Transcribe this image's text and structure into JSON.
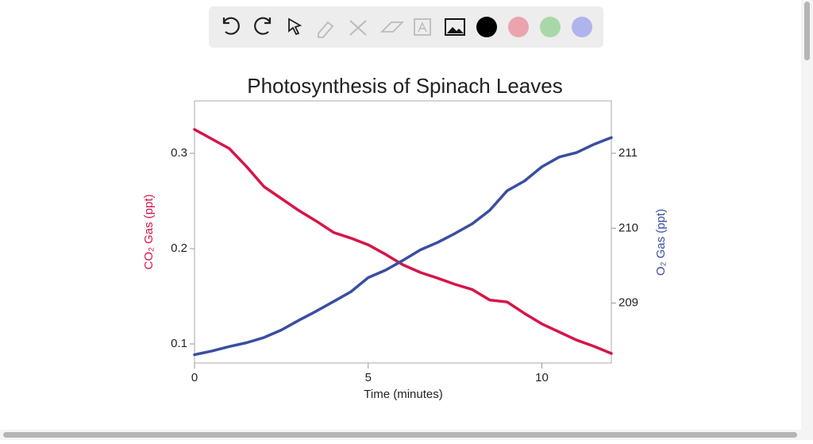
{
  "chart_data": {
    "type": "line",
    "title": "Photosynthesis of Spinach Leaves",
    "x_label": "Time  (minutes)",
    "y_label": "CO₂ Gas (ppt)",
    "y2_label": "O₂ Gas (ppt)",
    "x": [
      0,
      0.5,
      1,
      1.5,
      2,
      2.5,
      3,
      3.5,
      4,
      4.5,
      5,
      5.5,
      6,
      6.5,
      7,
      7.5,
      8,
      8.5,
      9,
      9.5,
      10,
      10.5,
      11,
      11.5,
      12
    ],
    "series": [
      {
        "name": "CO₂ Gas (ppt)",
        "color": "#d6154a",
        "axis": "y",
        "values": [
          0.325,
          0.315,
          0.305,
          0.286,
          0.265,
          0.2525,
          0.24,
          0.229,
          0.217,
          0.211,
          0.204,
          0.194,
          0.183,
          0.175,
          0.169,
          0.1625,
          0.157,
          0.146,
          0.144,
          0.132,
          0.121,
          0.1125,
          0.104,
          0.0975,
          0.09
        ]
      },
      {
        "name": "O₂ Gas (ppt)",
        "color": "#3a4ea0",
        "axis": "y2",
        "values": [
          208.31,
          208.36,
          208.42,
          208.47,
          208.54,
          208.64,
          208.77,
          208.89,
          209.02,
          209.15,
          209.34,
          209.44,
          209.57,
          209.71,
          209.81,
          209.93,
          210.06,
          210.24,
          210.5,
          210.63,
          210.82,
          210.95,
          211.01,
          211.12,
          211.21
        ]
      }
    ],
    "xlim": [
      0,
      12
    ],
    "xticks": [
      0,
      5,
      10
    ],
    "ylim": [
      0.08,
      0.355
    ],
    "yticks": [
      0.1,
      0.2,
      0.3
    ],
    "y2lim": [
      208.2,
      211.7
    ],
    "y2ticks": [
      209,
      210,
      211
    ],
    "grid": false
  }
}
